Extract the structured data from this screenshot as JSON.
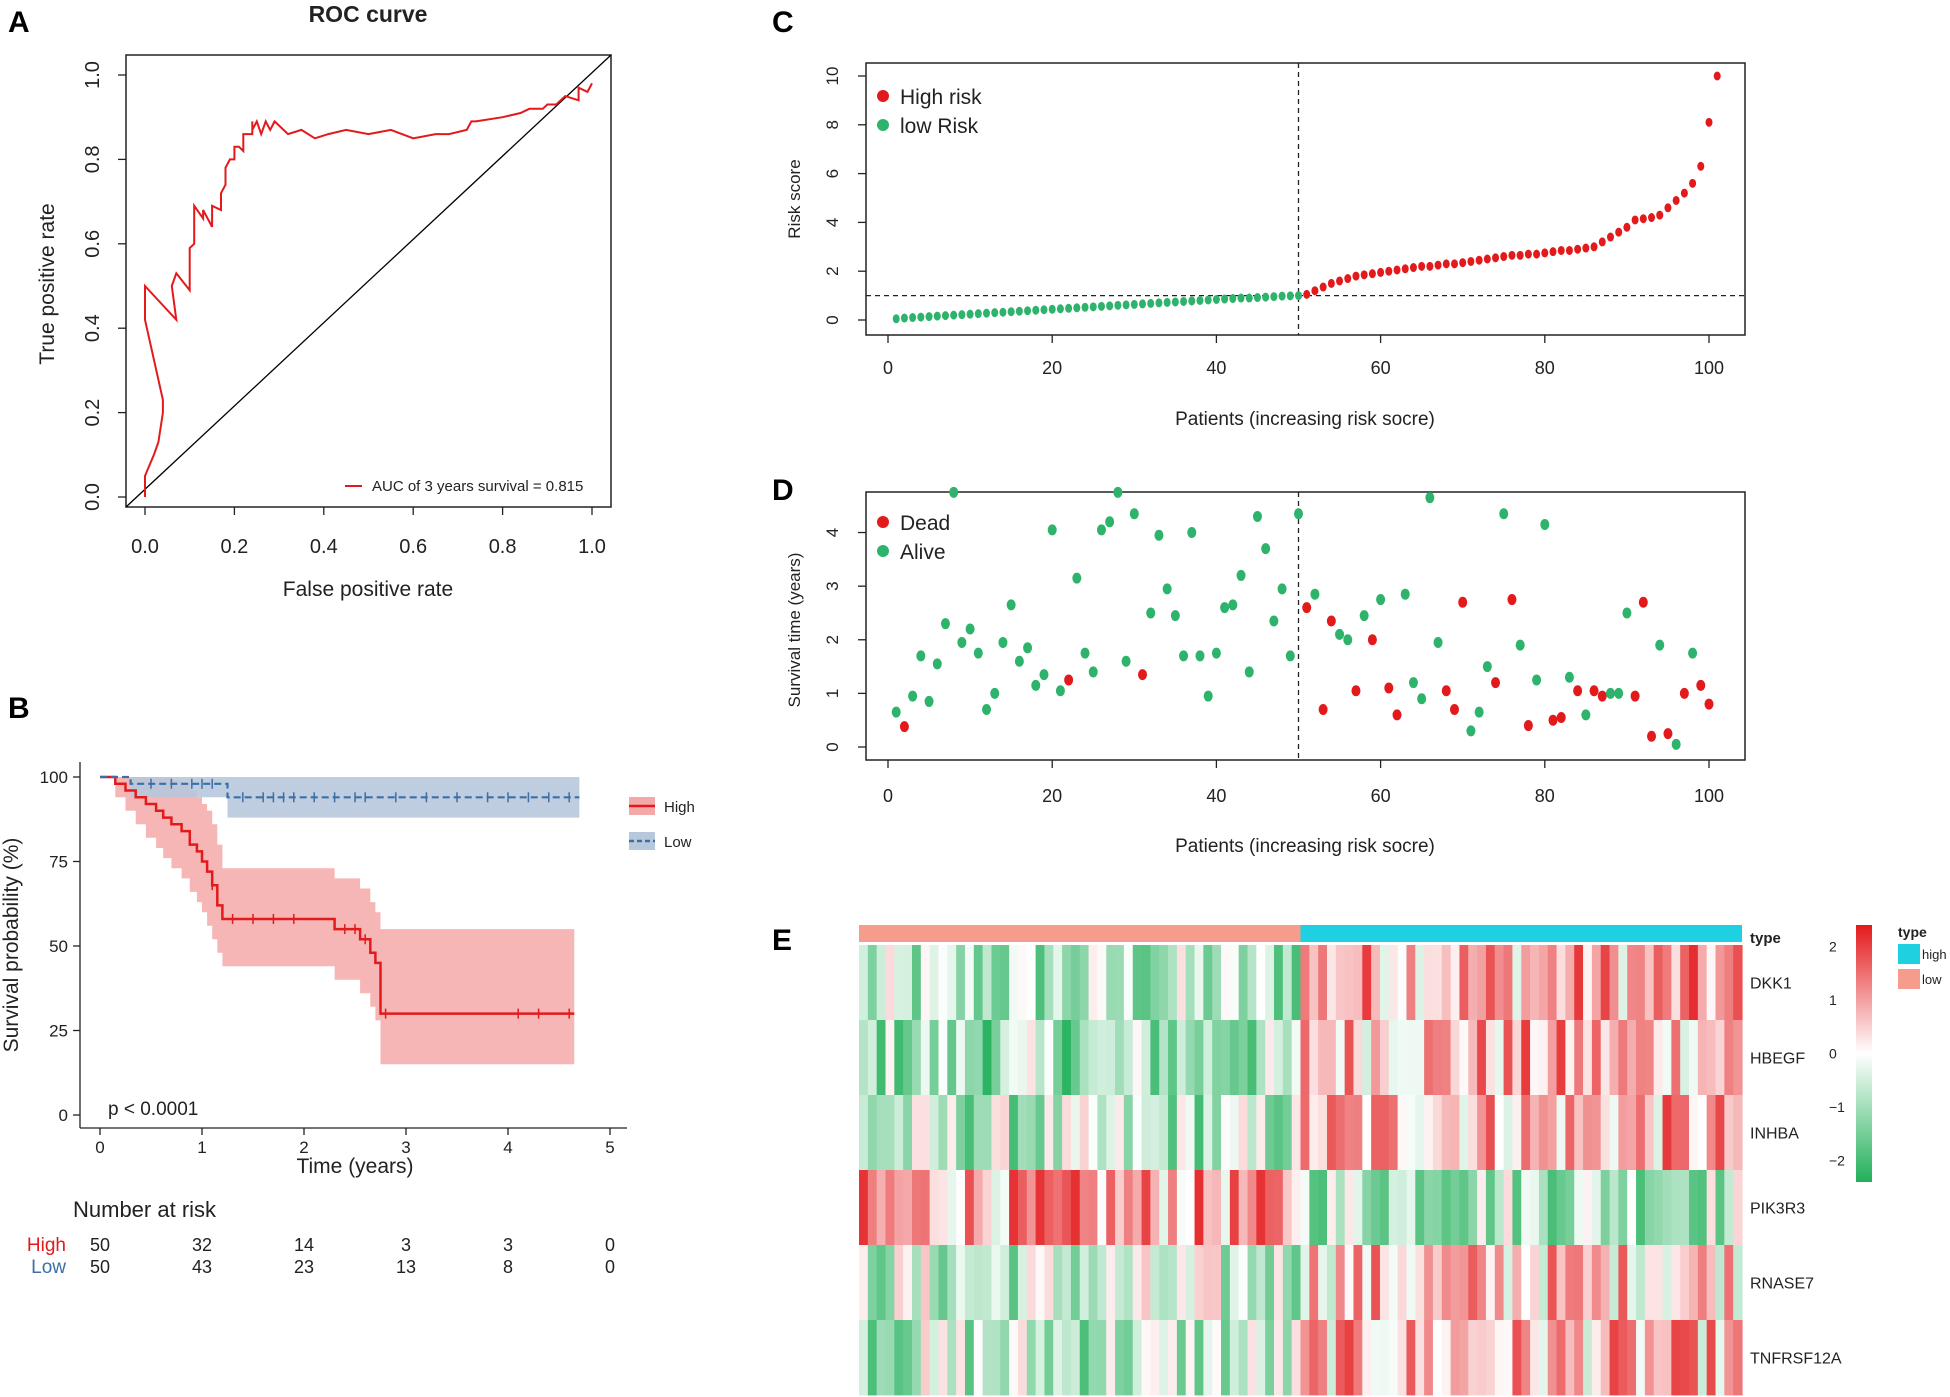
{
  "panel_labels": {
    "A": "A",
    "B": "B",
    "C": "C",
    "D": "D",
    "E": "E"
  },
  "chart_data": [
    {
      "panel": "A",
      "type": "line",
      "title": "ROC curve",
      "xlabel": "False positive rate",
      "ylabel": "True positive rate",
      "xlim": [
        0,
        1
      ],
      "ylim": [
        0,
        1
      ],
      "xticks": [
        "0.0",
        "0.2",
        "0.4",
        "0.6",
        "0.8",
        "1.0"
      ],
      "yticks": [
        "0.0",
        "0.2",
        "0.4",
        "0.6",
        "0.8",
        "1.0"
      ],
      "legend": "AUC of 3 years survival = 0.815",
      "roc_color": "#e31a1c",
      "roc_x": [
        0.0,
        0.0,
        0.0,
        0.02,
        0.02,
        0.03,
        0.03,
        0.04,
        0.04,
        0.0,
        0.0,
        0.07,
        0.06,
        0.07,
        0.1,
        0.1,
        0.11,
        0.11,
        0.11,
        0.13,
        0.13,
        0.15,
        0.15,
        0.17,
        0.17,
        0.18,
        0.18,
        0.19,
        0.2,
        0.2,
        0.21,
        0.22,
        0.22,
        0.24,
        0.24,
        0.24,
        0.25,
        0.26,
        0.27,
        0.28,
        0.29,
        0.3,
        0.32,
        0.35,
        0.38,
        0.41,
        0.45,
        0.5,
        0.55,
        0.6,
        0.65,
        0.68,
        0.72,
        0.73,
        0.74,
        0.8,
        0.84,
        0.86,
        0.89,
        0.9,
        0.92,
        0.94,
        0.97,
        0.97,
        0.99,
        1.0
      ],
      "roc_y": [
        0.0,
        0.05,
        0.05,
        0.1,
        0.1,
        0.13,
        0.13,
        0.2,
        0.23,
        0.42,
        0.5,
        0.42,
        0.5,
        0.53,
        0.49,
        0.59,
        0.6,
        0.65,
        0.69,
        0.66,
        0.68,
        0.64,
        0.69,
        0.68,
        0.72,
        0.74,
        0.78,
        0.8,
        0.8,
        0.83,
        0.83,
        0.82,
        0.86,
        0.86,
        0.89,
        0.87,
        0.89,
        0.86,
        0.89,
        0.87,
        0.89,
        0.88,
        0.86,
        0.87,
        0.85,
        0.86,
        0.87,
        0.86,
        0.87,
        0.85,
        0.86,
        0.86,
        0.87,
        0.89,
        0.89,
        0.9,
        0.91,
        0.92,
        0.92,
        0.93,
        0.93,
        0.95,
        0.94,
        0.97,
        0.96,
        0.98
      ]
    },
    {
      "panel": "B",
      "type": "line",
      "xlabel": "Time (years)",
      "ylabel": "Survival probability (%)",
      "xlim": [
        0,
        5
      ],
      "ylim": [
        0,
        100
      ],
      "xticks": [
        "0",
        "1",
        "2",
        "3",
        "4",
        "5"
      ],
      "yticks": [
        "0",
        "25",
        "50",
        "75",
        "100"
      ],
      "pvalue": "p < 0.0001",
      "risk_table_title": "Number at risk",
      "series": [
        {
          "name": "High",
          "color": "#e31a1c",
          "times": [
            0,
            0.15,
            0.25,
            0.35,
            0.45,
            0.55,
            0.62,
            0.7,
            0.8,
            0.88,
            0.95,
            1.0,
            1.05,
            1.1,
            1.15,
            1.2,
            2.0,
            2.3,
            2.55,
            2.65,
            2.7,
            2.75,
            4.65
          ],
          "surv": [
            100,
            98,
            96,
            94,
            92,
            90,
            88,
            86,
            84,
            80,
            78,
            75,
            72,
            68,
            62,
            58,
            58,
            55,
            52,
            48,
            45,
            30,
            30
          ],
          "ci_low": [
            100,
            94,
            90,
            86,
            82,
            79,
            76,
            73,
            70,
            66,
            63,
            60,
            56,
            52,
            48,
            44,
            44,
            40,
            36,
            32,
            28,
            15,
            15
          ],
          "ci_high": [
            100,
            100,
            100,
            100,
            100,
            100,
            100,
            99,
            98,
            96,
            94,
            92,
            90,
            86,
            80,
            73,
            73,
            70,
            67,
            63,
            60,
            55,
            55
          ],
          "censor_times": [
            1.1,
            1.3,
            1.5,
            1.7,
            1.9,
            2.4,
            2.5,
            2.6,
            2.8,
            4.1,
            4.3,
            4.6
          ],
          "risk_counts": [
            "50",
            "32",
            "14",
            "3",
            "3",
            "0"
          ]
        },
        {
          "name": "Low",
          "color": "#3d6fa5",
          "times": [
            0,
            0.3,
            0.6,
            0.9,
            1.25,
            4.7
          ],
          "surv": [
            100,
            98,
            98,
            98,
            94,
            94
          ],
          "ci_low": [
            100,
            94,
            94,
            94,
            88,
            88
          ],
          "ci_high": [
            100,
            100,
            100,
            100,
            100,
            100
          ],
          "censor_times": [
            0.5,
            0.7,
            0.9,
            1.0,
            1.1,
            1.4,
            1.6,
            1.7,
            1.8,
            1.9,
            2.1,
            2.3,
            2.5,
            2.6,
            2.9,
            3.2,
            3.5,
            3.8,
            4.0,
            4.2,
            4.4,
            4.6
          ],
          "risk_counts": [
            "50",
            "43",
            "23",
            "13",
            "8",
            "0"
          ]
        }
      ]
    },
    {
      "panel": "C",
      "type": "scatter",
      "xlabel": "Patients (increasing risk socre)",
      "ylabel": "Risk score",
      "xlim": [
        0,
        100
      ],
      "ylim": [
        0,
        10
      ],
      "xticks": [
        "0",
        "20",
        "40",
        "60",
        "80",
        "100"
      ],
      "yticks": [
        "0",
        "2",
        "4",
        "6",
        "8",
        "10"
      ],
      "cutoff_x": 50,
      "cutoff_y": 1.0,
      "series": [
        {
          "name": "High risk",
          "color": "#e31a1c"
        },
        {
          "name": "low Risk",
          "color": "#2db36b"
        }
      ],
      "risk_scores": [
        0.05,
        0.08,
        0.1,
        0.12,
        0.14,
        0.16,
        0.18,
        0.2,
        0.22,
        0.24,
        0.26,
        0.28,
        0.3,
        0.32,
        0.34,
        0.36,
        0.38,
        0.4,
        0.42,
        0.44,
        0.46,
        0.48,
        0.5,
        0.52,
        0.54,
        0.56,
        0.58,
        0.6,
        0.62,
        0.64,
        0.66,
        0.68,
        0.7,
        0.72,
        0.74,
        0.76,
        0.78,
        0.8,
        0.82,
        0.84,
        0.86,
        0.88,
        0.9,
        0.9,
        0.92,
        0.94,
        0.96,
        0.98,
        0.99,
        1.0,
        1.05,
        1.2,
        1.35,
        1.5,
        1.6,
        1.7,
        1.8,
        1.85,
        1.9,
        1.95,
        2.0,
        2.05,
        2.1,
        2.15,
        2.2,
        2.2,
        2.25,
        2.3,
        2.3,
        2.35,
        2.4,
        2.45,
        2.5,
        2.55,
        2.6,
        2.65,
        2.65,
        2.7,
        2.7,
        2.75,
        2.8,
        2.85,
        2.85,
        2.9,
        2.95,
        3.0,
        3.2,
        3.4,
        3.6,
        3.8,
        4.1,
        4.15,
        4.2,
        4.3,
        4.6,
        4.9,
        5.2,
        5.6,
        6.3,
        8.1,
        10.0
      ]
    },
    {
      "panel": "D",
      "type": "scatter",
      "xlabel": "Patients (increasing risk socre)",
      "ylabel": "Survival time (years)",
      "xlim": [
        0,
        100
      ],
      "ylim": [
        0,
        4.7
      ],
      "xticks": [
        "0",
        "20",
        "40",
        "60",
        "80",
        "100"
      ],
      "yticks": [
        "0",
        "1",
        "2",
        "3",
        "4"
      ],
      "cutoff_x": 50,
      "series": [
        {
          "name": "Dead",
          "color": "#e31a1c"
        },
        {
          "name": "Alive",
          "color": "#2db36b"
        }
      ],
      "points": [
        [
          1,
          0.65,
          0
        ],
        [
          2,
          0.38,
          1
        ],
        [
          3,
          0.95,
          0
        ],
        [
          4,
          1.7,
          0
        ],
        [
          5,
          0.85,
          0
        ],
        [
          6,
          1.55,
          0
        ],
        [
          7,
          2.3,
          0
        ],
        [
          8,
          4.75,
          0
        ],
        [
          9,
          1.95,
          0
        ],
        [
          10,
          2.2,
          0
        ],
        [
          11,
          1.75,
          0
        ],
        [
          12,
          0.7,
          0
        ],
        [
          13,
          1.0,
          0
        ],
        [
          14,
          1.95,
          0
        ],
        [
          15,
          2.65,
          0
        ],
        [
          16,
          1.6,
          0
        ],
        [
          17,
          1.85,
          0
        ],
        [
          18,
          1.15,
          0
        ],
        [
          19,
          1.35,
          0
        ],
        [
          20,
          4.05,
          0
        ],
        [
          21,
          1.05,
          0
        ],
        [
          22,
          1.25,
          1
        ],
        [
          23,
          3.15,
          0
        ],
        [
          24,
          1.75,
          0
        ],
        [
          25,
          1.4,
          0
        ],
        [
          26,
          4.05,
          0
        ],
        [
          27,
          4.2,
          0
        ],
        [
          28,
          4.75,
          0
        ],
        [
          29,
          1.6,
          0
        ],
        [
          30,
          4.35,
          0
        ],
        [
          31,
          1.35,
          1
        ],
        [
          32,
          2.5,
          0
        ],
        [
          33,
          3.95,
          0
        ],
        [
          34,
          2.95,
          0
        ],
        [
          35,
          2.45,
          0
        ],
        [
          36,
          1.7,
          0
        ],
        [
          37,
          4.0,
          0
        ],
        [
          38,
          1.7,
          0
        ],
        [
          39,
          0.95,
          0
        ],
        [
          40,
          1.75,
          0
        ],
        [
          41,
          2.6,
          0
        ],
        [
          42,
          2.65,
          0
        ],
        [
          43,
          3.2,
          0
        ],
        [
          44,
          1.4,
          0
        ],
        [
          45,
          4.3,
          0
        ],
        [
          46,
          3.7,
          0
        ],
        [
          47,
          2.35,
          0
        ],
        [
          48,
          2.95,
          0
        ],
        [
          49,
          1.7,
          0
        ],
        [
          50,
          4.35,
          0
        ],
        [
          51,
          2.6,
          1
        ],
        [
          52,
          2.85,
          0
        ],
        [
          53,
          0.7,
          1
        ],
        [
          54,
          2.35,
          1
        ],
        [
          55,
          2.1,
          0
        ],
        [
          56,
          2.0,
          0
        ],
        [
          57,
          1.05,
          1
        ],
        [
          58,
          2.45,
          0
        ],
        [
          59,
          2.0,
          1
        ],
        [
          60,
          2.75,
          0
        ],
        [
          61,
          1.1,
          1
        ],
        [
          62,
          0.6,
          1
        ],
        [
          63,
          2.85,
          0
        ],
        [
          64,
          1.2,
          0
        ],
        [
          65,
          0.9,
          0
        ],
        [
          66,
          4.65,
          0
        ],
        [
          67,
          1.95,
          0
        ],
        [
          68,
          1.05,
          1
        ],
        [
          69,
          0.7,
          1
        ],
        [
          70,
          2.7,
          1
        ],
        [
          71,
          0.3,
          0
        ],
        [
          72,
          0.65,
          0
        ],
        [
          73,
          1.5,
          0
        ],
        [
          74,
          1.2,
          1
        ],
        [
          75,
          4.35,
          0
        ],
        [
          76,
          2.75,
          1
        ],
        [
          77,
          1.9,
          0
        ],
        [
          78,
          0.4,
          1
        ],
        [
          79,
          1.25,
          0
        ],
        [
          80,
          4.15,
          0
        ],
        [
          81,
          0.5,
          1
        ],
        [
          82,
          0.55,
          1
        ],
        [
          83,
          1.3,
          0
        ],
        [
          84,
          1.05,
          1
        ],
        [
          85,
          0.6,
          0
        ],
        [
          86,
          1.05,
          1
        ],
        [
          87,
          0.95,
          1
        ],
        [
          88,
          1.0,
          0
        ],
        [
          89,
          1.0,
          0
        ],
        [
          90,
          2.5,
          0
        ],
        [
          91,
          0.95,
          1
        ],
        [
          92,
          2.7,
          1
        ],
        [
          93,
          0.2,
          1
        ],
        [
          94,
          1.9,
          0
        ],
        [
          95,
          0.25,
          1
        ],
        [
          96,
          0.05,
          0
        ],
        [
          97,
          1.0,
          1
        ],
        [
          98,
          1.75,
          0
        ],
        [
          99,
          1.15,
          1
        ],
        [
          100,
          0.8,
          1
        ]
      ]
    },
    {
      "panel": "E",
      "type": "heatmap",
      "genes": [
        "DKK1",
        "HBEGF",
        "INHBA",
        "PIK3R3",
        "RNASE7",
        "TNFRSF12A"
      ],
      "type_row_label": "type",
      "legend_title": "type",
      "legend_entries": [
        {
          "name": "high",
          "color": "#1fd0e0"
        },
        {
          "name": "low",
          "color": "#f59c8c"
        }
      ],
      "color_scale_ticks": [
        "2",
        "1",
        "0",
        "−1",
        "−2"
      ],
      "color_range": [
        -2.4,
        2.4
      ],
      "n_low": 50,
      "n_high": 50
    }
  ]
}
